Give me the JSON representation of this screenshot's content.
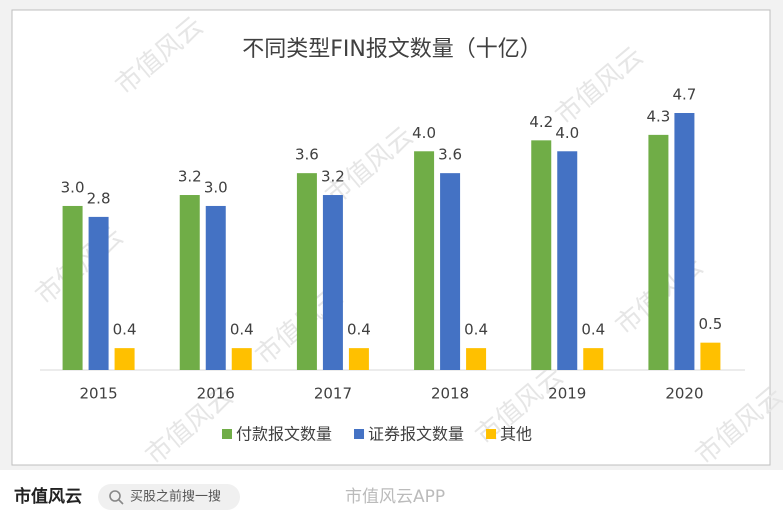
{
  "chart_data": {
    "type": "bar",
    "title": "不同类型FIN报文数量（十亿）",
    "categories": [
      "2015",
      "2016",
      "2017",
      "2018",
      "2019",
      "2020"
    ],
    "series": [
      {
        "name": "付款报文数量",
        "color": "#70ad47",
        "values": [
          3.0,
          3.2,
          3.6,
          4.0,
          4.2,
          4.3
        ],
        "value_labels": [
          "3.0",
          "3.2",
          "3.6",
          "4.0",
          "4.2",
          "4.3"
        ]
      },
      {
        "name": "证券报文数量",
        "color": "#4472c4",
        "values": [
          2.8,
          3.0,
          3.2,
          3.6,
          4.0,
          4.7
        ],
        "value_labels": [
          "2.8",
          "3.0",
          "3.2",
          "3.6",
          "4.0",
          "4.7"
        ]
      },
      {
        "name": "其他",
        "color": "#ffc000",
        "values": [
          0.4,
          0.4,
          0.4,
          0.4,
          0.4,
          0.5
        ],
        "value_labels": [
          "0.4",
          "0.4",
          "0.4",
          "0.4",
          "0.4",
          "0.5"
        ]
      }
    ],
    "legend": "bottom",
    "grid": false
  },
  "footer": {
    "logo": "市值风云",
    "search": "买股之前搜一搜",
    "source": "市值风云APP"
  },
  "watermark": "市值风云"
}
